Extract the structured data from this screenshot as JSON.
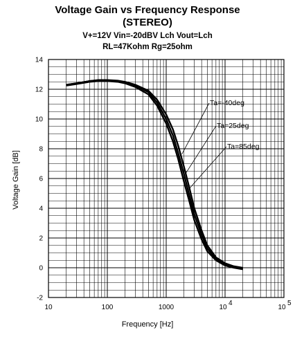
{
  "chart_data": {
    "type": "line",
    "title": "Voltage Gain vs Frequency Response",
    "subtitle": "(STEREO)",
    "conditions": [
      "V+=12V  Vin=-20dBV Lch    Vout=Lch",
      "RL=47Kohm  Rg=25ohm"
    ],
    "xlabel": "Frequency [Hz]",
    "ylabel": "Voltage Gain  [dB]",
    "x_scale": "log",
    "xlim": [
      10,
      100000
    ],
    "ylim": [
      -2,
      14
    ],
    "grid": true,
    "x_ticks": [
      "10",
      "100",
      "1000",
      "10",
      "10"
    ],
    "x_tick_exponents": [
      "",
      "",
      "",
      "4",
      "5"
    ],
    "y_ticks": [
      "-2",
      "0",
      "2",
      "4",
      "6",
      "8",
      "10",
      "12",
      "14"
    ],
    "line_color": "#000000",
    "series": [
      {
        "name": "Ta=-40deg",
        "x": [
          20,
          30,
          50,
          70,
          100,
          150,
          200,
          300,
          500,
          700,
          1000,
          1300,
          1600,
          2000,
          2500,
          3000,
          4000,
          5000,
          7000,
          10000,
          14000,
          20000
        ],
        "y": [
          12.3,
          12.4,
          12.55,
          12.62,
          12.62,
          12.58,
          12.5,
          12.3,
          11.9,
          11.3,
          10.3,
          9.3,
          8.2,
          6.8,
          5.3,
          4.0,
          2.5,
          1.5,
          0.7,
          0.3,
          0.1,
          0.0
        ]
      },
      {
        "name": "Ta=25deg",
        "x": [
          20,
          30,
          50,
          70,
          100,
          150,
          200,
          300,
          500,
          700,
          1000,
          1300,
          1600,
          2000,
          2500,
          3000,
          4000,
          5000,
          7000,
          10000,
          14000,
          20000
        ],
        "y": [
          12.3,
          12.4,
          12.55,
          12.6,
          12.6,
          12.55,
          12.45,
          12.25,
          11.8,
          11.1,
          10.0,
          8.9,
          7.7,
          6.3,
          4.8,
          3.6,
          2.2,
          1.3,
          0.6,
          0.25,
          0.05,
          -0.05
        ]
      },
      {
        "name": "Ta=85deg",
        "x": [
          20,
          30,
          50,
          70,
          100,
          150,
          200,
          300,
          500,
          700,
          1000,
          1300,
          1600,
          2000,
          2500,
          3000,
          4000,
          5000,
          7000,
          10000,
          14000,
          20000
        ],
        "y": [
          12.25,
          12.35,
          12.5,
          12.55,
          12.55,
          12.5,
          12.4,
          12.15,
          11.65,
          10.9,
          9.7,
          8.5,
          7.3,
          5.8,
          4.4,
          3.2,
          1.9,
          1.1,
          0.5,
          0.15,
          0.0,
          -0.1
        ]
      }
    ],
    "annotations": [
      {
        "text": "Ta=-40deg",
        "series": "Ta=-40deg"
      },
      {
        "text": "Ta=25deg",
        "series": "Ta=25deg"
      },
      {
        "text": "Ta=85deg",
        "series": "Ta=85deg"
      }
    ]
  }
}
